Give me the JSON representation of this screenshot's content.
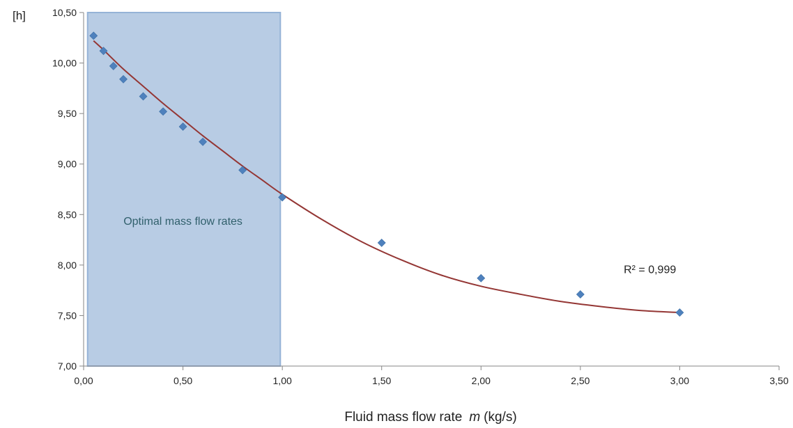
{
  "chart_data": {
    "type": "scatter",
    "xlabel_prefix": "Fluid mass flow rate",
    "xlabel_symbol": "m",
    "xlabel_unit": "(kg/s)",
    "ylabel": "[h]",
    "xlim": [
      0,
      3.5
    ],
    "ylim": [
      7,
      10.5
    ],
    "x_ticks": [
      0,
      0.5,
      1,
      1.5,
      2,
      2.5,
      3,
      3.5
    ],
    "y_ticks": [
      7,
      7.5,
      8,
      8.5,
      9,
      9.5,
      10,
      10.5
    ],
    "x_tick_labels": [
      "0,00",
      "0,50",
      "1,00",
      "1,50",
      "2,00",
      "2,50",
      "3,00",
      "3,50"
    ],
    "y_tick_labels": [
      "7,00",
      "7,50",
      "8,00",
      "8,50",
      "9,00",
      "9,50",
      "10,00",
      "10,50"
    ],
    "grid": false,
    "series": [
      {
        "x": [
          0.05,
          0.1,
          0.15,
          0.2,
          0.3,
          0.4,
          0.5,
          0.6,
          0.8,
          1.0,
          1.5,
          2.0,
          2.5,
          3.0
        ],
        "y": [
          10.27,
          10.12,
          9.97,
          9.84,
          9.67,
          9.52,
          9.37,
          9.22,
          8.94,
          8.67,
          8.22,
          7.87,
          7.71,
          7.53
        ],
        "color": "#4f81bd"
      }
    ],
    "trendline": {
      "x": [
        0.05,
        0.1,
        0.2,
        0.3,
        0.4,
        0.5,
        0.6,
        0.7,
        0.8,
        0.9,
        1.0,
        1.2,
        1.4,
        1.6,
        1.8,
        2.0,
        2.2,
        2.4,
        2.6,
        2.8,
        3.0
      ],
      "y": [
        10.22,
        10.13,
        9.94,
        9.77,
        9.6,
        9.44,
        9.28,
        9.13,
        8.98,
        8.84,
        8.7,
        8.45,
        8.23,
        8.05,
        7.9,
        7.79,
        7.71,
        7.64,
        7.59,
        7.55,
        7.53
      ],
      "color": "#943634",
      "r2_label": "R² = 0,999",
      "r2_label_at": [
        2.85,
        7.92
      ]
    },
    "highlight_band": {
      "x_range": [
        0.02,
        0.99
      ],
      "label": "Optimal mass flow rates",
      "label_at": [
        0.5,
        8.4
      ],
      "fill": "#b8cce4",
      "stroke": "#95b3d7",
      "label_color": "#31606c"
    },
    "axis_color": "#868686"
  }
}
